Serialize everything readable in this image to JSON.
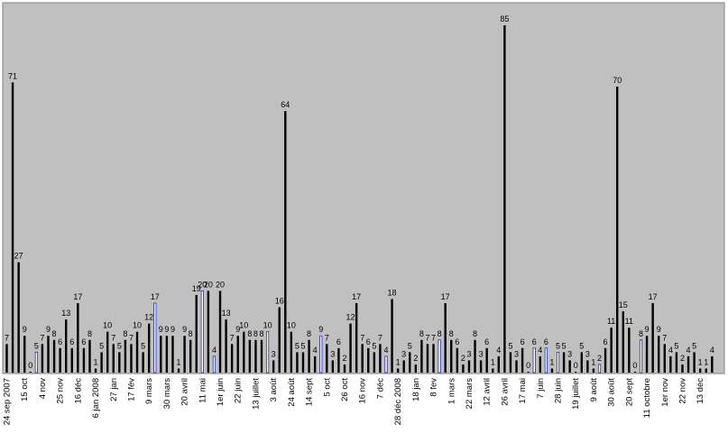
{
  "chart_data": {
    "type": "bar",
    "title": "",
    "xlabel": "",
    "ylabel": "",
    "ylim": [
      0,
      90
    ],
    "grid": false,
    "legend": "none",
    "colors": {
      "plot_bg": "#c0c0c0",
      "bar": "#000000",
      "bar_highlight": "#1f2fa8",
      "bar_fill": "#ffffff"
    },
    "values": [
      7,
      71,
      27,
      9,
      0,
      5,
      7,
      9,
      8,
      6,
      13,
      6,
      17,
      6,
      8,
      1,
      5,
      10,
      7,
      5,
      8,
      7,
      10,
      5,
      12,
      17,
      9,
      9,
      9,
      1,
      9,
      8,
      19,
      20,
      20,
      4,
      20,
      13,
      7,
      9,
      10,
      8,
      8,
      8,
      10,
      3,
      16,
      64,
      10,
      5,
      5,
      8,
      4,
      9,
      7,
      3,
      6,
      2,
      12,
      17,
      7,
      6,
      5,
      7,
      4,
      18,
      1,
      3,
      5,
      2,
      8,
      7,
      7,
      8,
      17,
      8,
      6,
      2,
      3,
      8,
      3,
      6,
      1,
      4,
      85,
      5,
      3,
      6,
      0,
      6,
      4,
      6,
      1,
      5,
      5,
      3,
      0,
      5,
      3,
      1,
      2,
      6,
      11,
      70,
      15,
      11,
      0,
      8,
      9,
      17,
      9,
      7,
      4,
      5,
      2,
      4,
      5,
      1,
      1,
      4
    ],
    "highlight_indices": [
      5,
      25,
      33,
      35,
      44,
      53,
      64,
      73,
      89,
      91,
      93,
      100,
      107
    ],
    "x_tick_labels": [
      {
        "index": 0,
        "label": "24 sep 2007"
      },
      {
        "index": 3,
        "label": "15 oct"
      },
      {
        "index": 6,
        "label": "4 nov"
      },
      {
        "index": 9,
        "label": "25 nov"
      },
      {
        "index": 12,
        "label": "16 déc"
      },
      {
        "index": 15,
        "label": "6 jan 2008"
      },
      {
        "index": 18,
        "label": "27 jan"
      },
      {
        "index": 21,
        "label": "17 fév"
      },
      {
        "index": 24,
        "label": "9 mars"
      },
      {
        "index": 27,
        "label": "30 mars"
      },
      {
        "index": 30,
        "label": "20 avril"
      },
      {
        "index": 33,
        "label": "11 mai"
      },
      {
        "index": 36,
        "label": "1er juin"
      },
      {
        "index": 39,
        "label": "22 juin"
      },
      {
        "index": 42,
        "label": "13 juillet"
      },
      {
        "index": 45,
        "label": "3 août"
      },
      {
        "index": 48,
        "label": "24 août"
      },
      {
        "index": 51,
        "label": "14 sept"
      },
      {
        "index": 54,
        "label": "5 oct"
      },
      {
        "index": 57,
        "label": "26 oct"
      },
      {
        "index": 60,
        "label": "16 nov"
      },
      {
        "index": 63,
        "label": "7 déc"
      },
      {
        "index": 66,
        "label": "28 déc 2008"
      },
      {
        "index": 69,
        "label": "18 jan"
      },
      {
        "index": 72,
        "label": "8 fev"
      },
      {
        "index": 75,
        "label": "1 mars"
      },
      {
        "index": 78,
        "label": "22 mars"
      },
      {
        "index": 81,
        "label": "12 avril"
      },
      {
        "index": 84,
        "label": "26 avril"
      },
      {
        "index": 87,
        "label": "17 mai"
      },
      {
        "index": 90,
        "label": "7 juin"
      },
      {
        "index": 93,
        "label": "28 juin"
      },
      {
        "index": 96,
        "label": "19 juillet"
      },
      {
        "index": 99,
        "label": "9 août"
      },
      {
        "index": 102,
        "label": "30 août"
      },
      {
        "index": 105,
        "label": "20 sept"
      },
      {
        "index": 108,
        "label": "11 octobre"
      },
      {
        "index": 111,
        "label": "1er nov"
      },
      {
        "index": 114,
        "label": "22 nov"
      },
      {
        "index": 117,
        "label": "13 déc"
      }
    ]
  }
}
